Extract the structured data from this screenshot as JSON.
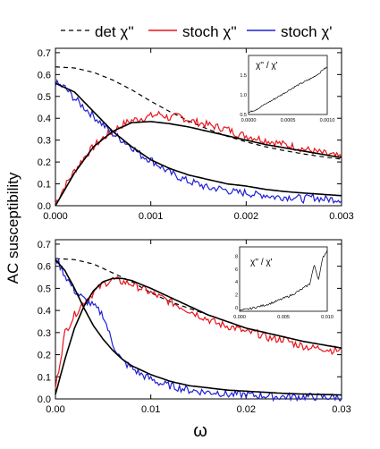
{
  "figure": {
    "ylabel": "AC susceptibility",
    "xlabel": "ω"
  },
  "legend": {
    "placement": "top",
    "entries": [
      {
        "label": "det χ''",
        "color": "#000000",
        "dash": true
      },
      {
        "label": "stoch χ''",
        "color": "#e8141b",
        "dash": false
      },
      {
        "label": "stoch χ'",
        "color": "#1f1fd6",
        "dash": false
      }
    ]
  },
  "colors": {
    "det": "#000000",
    "stoch_im": "#e8141b",
    "stoch_re": "#1f1fd6",
    "fit": "#000000"
  },
  "chart_data": [
    {
      "type": "line",
      "panel": "top",
      "xlim": [
        0,
        0.003
      ],
      "ylim": [
        0,
        0.72
      ],
      "xticks": [
        0,
        0.001,
        0.002,
        0.003
      ],
      "xticklabels": [
        "0.000",
        "0.001",
        "0.002",
        "0.003"
      ],
      "yticks": [
        0.0,
        0.1,
        0.2,
        0.3,
        0.4,
        0.5,
        0.6,
        0.7
      ],
      "yticklabels": [
        "0.0",
        "0.1",
        "0.2",
        "0.3",
        "0.4",
        "0.5",
        "0.6",
        "0.7"
      ],
      "grid": false,
      "series": [
        {
          "name": "det χ''",
          "style": "dashed",
          "color": "#000000",
          "x": [
            0,
            0.0002,
            0.0004,
            0.0006,
            0.0008,
            0.001,
            0.0012,
            0.0014,
            0.0016,
            0.0018,
            0.002,
            0.0022,
            0.0024,
            0.0026,
            0.0028,
            0.003
          ],
          "y": [
            0.635,
            0.63,
            0.61,
            0.575,
            0.53,
            0.478,
            0.43,
            0.387,
            0.35,
            0.318,
            0.292,
            0.27,
            0.252,
            0.237,
            0.224,
            0.213
          ]
        },
        {
          "name": "stoch χ''",
          "style": "noisy",
          "color": "#e8141b",
          "x": [
            0,
            0.0001,
            0.0002,
            0.0003,
            0.0004,
            0.0005,
            0.0006,
            0.0007,
            0.0008,
            0.0009,
            0.001,
            0.0011,
            0.0012,
            0.0013,
            0.0014,
            0.0015,
            0.0016,
            0.0017,
            0.0018,
            0.0019,
            0.002,
            0.0021,
            0.0022,
            0.0023,
            0.0024,
            0.0025,
            0.0026,
            0.0027,
            0.0028,
            0.0029,
            0.003
          ],
          "y": [
            0.01,
            0.09,
            0.16,
            0.22,
            0.27,
            0.31,
            0.34,
            0.37,
            0.39,
            0.4,
            0.41,
            0.42,
            0.4,
            0.41,
            0.39,
            0.38,
            0.37,
            0.36,
            0.35,
            0.33,
            0.32,
            0.31,
            0.3,
            0.29,
            0.28,
            0.27,
            0.26,
            0.25,
            0.24,
            0.23,
            0.22
          ]
        },
        {
          "name": "stoch χ'",
          "style": "noisy",
          "color": "#1f1fd6",
          "x": [
            0,
            0.0001,
            0.0002,
            0.0003,
            0.0004,
            0.0005,
            0.0006,
            0.0007,
            0.0008,
            0.0009,
            0.001,
            0.0011,
            0.0012,
            0.0013,
            0.0014,
            0.0015,
            0.0016,
            0.0017,
            0.0018,
            0.0019,
            0.002,
            0.0021,
            0.0022,
            0.0023,
            0.0024,
            0.0025,
            0.0026,
            0.0027,
            0.0028,
            0.0029,
            0.003
          ],
          "y": [
            0.56,
            0.54,
            0.49,
            0.45,
            0.41,
            0.37,
            0.33,
            0.3,
            0.27,
            0.23,
            0.21,
            0.18,
            0.15,
            0.13,
            0.11,
            0.1,
            0.08,
            0.08,
            0.07,
            0.06,
            0.06,
            0.05,
            0.05,
            0.04,
            0.04,
            0.04,
            0.03,
            0.04,
            0.03,
            0.03,
            0.03
          ]
        },
        {
          "name": "",
          "style": "fit",
          "color": "#000000",
          "x": [
            0,
            0.0002,
            0.0004,
            0.0006,
            0.0008,
            0.001,
            0.0012,
            0.0014,
            0.0016,
            0.0018,
            0.002,
            0.0022,
            0.0024,
            0.0026,
            0.0028,
            0.003
          ],
          "y": [
            0.0,
            0.15,
            0.27,
            0.34,
            0.38,
            0.385,
            0.375,
            0.36,
            0.34,
            0.32,
            0.3,
            0.28,
            0.265,
            0.25,
            0.235,
            0.22
          ]
        },
        {
          "name": "",
          "style": "fit",
          "color": "#000000",
          "x": [
            0,
            0.0002,
            0.0004,
            0.0006,
            0.0008,
            0.001,
            0.0012,
            0.0014,
            0.0016,
            0.0018,
            0.002,
            0.0022,
            0.0024,
            0.0026,
            0.0028,
            0.003
          ],
          "y": [
            0.56,
            0.52,
            0.43,
            0.34,
            0.27,
            0.21,
            0.17,
            0.14,
            0.12,
            0.1,
            0.09,
            0.075,
            0.065,
            0.058,
            0.052,
            0.046
          ]
        }
      ],
      "inset": {
        "label": "χ'' / χ'",
        "xlim": [
          0,
          0.001
        ],
        "ylim": [
          0.5,
          2.0
        ],
        "xticklabels": [
          "0.0000",
          "0.0005",
          "0.0010"
        ],
        "yticklabels": [
          "0.5",
          "1.0",
          "1.5"
        ],
        "x": [
          0,
          0.0001,
          0.0002,
          0.0003,
          0.0004,
          0.0005,
          0.0006,
          0.0007,
          0.0008,
          0.0009,
          0.00095,
          0.001
        ],
        "y": [
          0.55,
          0.63,
          0.75,
          0.86,
          0.98,
          1.1,
          1.22,
          1.32,
          1.42,
          1.55,
          1.65,
          1.7
        ]
      }
    },
    {
      "type": "line",
      "panel": "bottom",
      "xlim": [
        0,
        0.03
      ],
      "ylim": [
        0,
        0.72
      ],
      "xticks": [
        0,
        0.01,
        0.02,
        0.03
      ],
      "xticklabels": [
        "0.00",
        "0.01",
        "0.02",
        "0.03"
      ],
      "yticks": [
        0.0,
        0.1,
        0.2,
        0.3,
        0.4,
        0.5,
        0.6,
        0.7
      ],
      "yticklabels": [
        "0.0",
        "0.1",
        "0.2",
        "0.3",
        "0.4",
        "0.5",
        "0.6",
        "0.7"
      ],
      "grid": false,
      "series": [
        {
          "name": "det χ''",
          "style": "dashed",
          "color": "#000000",
          "x": [
            0,
            0.002,
            0.004,
            0.006,
            0.008,
            0.01,
            0.012,
            0.014,
            0.016,
            0.018,
            0.02,
            0.022,
            0.024,
            0.026,
            0.028,
            0.03
          ],
          "y": [
            0.635,
            0.63,
            0.61,
            0.57,
            0.53,
            0.48,
            0.44,
            0.41,
            0.38,
            0.35,
            0.32,
            0.3,
            0.28,
            0.26,
            0.245,
            0.23
          ]
        },
        {
          "name": "stoch χ''",
          "style": "noisy",
          "color": "#e8141b",
          "x": [
            0,
            0.001,
            0.002,
            0.003,
            0.004,
            0.005,
            0.006,
            0.007,
            0.008,
            0.009,
            0.01,
            0.011,
            0.012,
            0.013,
            0.014,
            0.015,
            0.016,
            0.017,
            0.018,
            0.019,
            0.02,
            0.021,
            0.022,
            0.023,
            0.024,
            0.025,
            0.026,
            0.027,
            0.028,
            0.029,
            0.03
          ],
          "y": [
            0.05,
            0.3,
            0.38,
            0.44,
            0.48,
            0.52,
            0.54,
            0.53,
            0.52,
            0.5,
            0.48,
            0.46,
            0.44,
            0.42,
            0.4,
            0.38,
            0.36,
            0.34,
            0.33,
            0.32,
            0.3,
            0.3,
            0.28,
            0.27,
            0.27,
            0.25,
            0.24,
            0.23,
            0.23,
            0.22,
            0.22
          ]
        },
        {
          "name": "stoch χ'",
          "style": "noisy",
          "color": "#1f1fd6",
          "x": [
            0,
            0.001,
            0.002,
            0.003,
            0.004,
            0.005,
            0.006,
            0.007,
            0.008,
            0.009,
            0.01,
            0.011,
            0.012,
            0.013,
            0.014,
            0.015,
            0.016,
            0.017,
            0.018,
            0.019,
            0.02,
            0.021,
            0.022,
            0.023,
            0.024,
            0.025,
            0.026,
            0.027,
            0.028,
            0.029,
            0.03
          ],
          "y": [
            0.64,
            0.56,
            0.49,
            0.45,
            0.42,
            0.38,
            0.25,
            0.17,
            0.14,
            0.11,
            0.09,
            0.07,
            0.06,
            0.05,
            0.04,
            0.035,
            0.03,
            0.03,
            0.02,
            0.02,
            0.02,
            0.015,
            0.015,
            0.01,
            0.01,
            0.01,
            0.01,
            0.01,
            0.008,
            0.008,
            0.008
          ]
        },
        {
          "name": "",
          "style": "fit",
          "color": "#000000",
          "x": [
            0,
            0.001,
            0.002,
            0.003,
            0.004,
            0.005,
            0.006,
            0.007,
            0.008,
            0.01,
            0.012,
            0.014,
            0.016,
            0.018,
            0.02,
            0.022,
            0.024,
            0.026,
            0.028,
            0.03
          ],
          "y": [
            0.02,
            0.18,
            0.32,
            0.42,
            0.49,
            0.53,
            0.545,
            0.545,
            0.535,
            0.5,
            0.46,
            0.42,
            0.38,
            0.35,
            0.32,
            0.3,
            0.28,
            0.26,
            0.245,
            0.23
          ]
        },
        {
          "name": "",
          "style": "fit",
          "color": "#000000",
          "x": [
            0,
            0.001,
            0.002,
            0.003,
            0.004,
            0.005,
            0.006,
            0.007,
            0.008,
            0.01,
            0.012,
            0.014,
            0.016,
            0.018,
            0.02,
            0.022,
            0.024,
            0.026,
            0.028,
            0.03
          ],
          "y": [
            0.63,
            0.58,
            0.5,
            0.41,
            0.33,
            0.27,
            0.22,
            0.18,
            0.15,
            0.11,
            0.08,
            0.06,
            0.05,
            0.04,
            0.035,
            0.03,
            0.025,
            0.022,
            0.02,
            0.018
          ]
        }
      ],
      "inset": {
        "label": "χ'' / χ'",
        "xlim": [
          0,
          0.01
        ],
        "ylim": [
          0,
          9
        ],
        "xticklabels": [
          "0.000",
          "0.005",
          "0.010"
        ],
        "yticklabels": [
          "0",
          "2",
          "4",
          "6",
          "8"
        ],
        "x": [
          0,
          0.001,
          0.002,
          0.003,
          0.004,
          0.005,
          0.006,
          0.007,
          0.008,
          0.0085,
          0.009,
          0.0095,
          0.01
        ],
        "y": [
          0.1,
          0.3,
          0.6,
          0.9,
          1.3,
          1.8,
          2.3,
          3.0,
          3.8,
          6.5,
          4.5,
          7.5,
          8.5
        ]
      }
    }
  ]
}
